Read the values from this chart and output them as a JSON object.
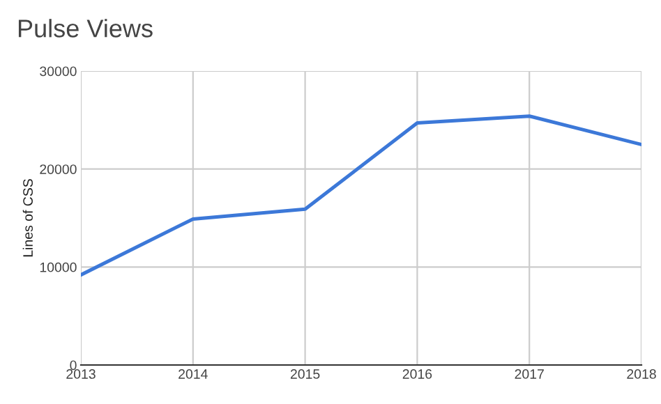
{
  "chart_data": {
    "type": "line",
    "title": "Pulse Views",
    "ylabel": "Lines of CSS",
    "x": [
      2013,
      2014,
      2015,
      2016,
      2017,
      2018
    ],
    "series": [
      {
        "color": "#3c78d8",
        "values": [
          9200,
          14900,
          15900,
          24700,
          25400,
          22500
        ]
      }
    ],
    "xlim": [
      2013,
      2018
    ],
    "xticks": [
      2013,
      2014,
      2015,
      2016,
      2017,
      2018
    ],
    "ylim": [
      0,
      30000
    ],
    "yticks": [
      0,
      10000,
      20000,
      30000
    ],
    "grid": true,
    "legend": false
  }
}
